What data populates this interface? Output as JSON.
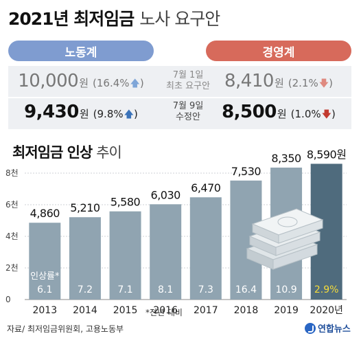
{
  "header": {
    "title_main": "2021년 최저임금",
    "title_sub": "노사 요구안"
  },
  "parties": {
    "labor": "노동계",
    "management": "경영계"
  },
  "comparison": [
    {
      "label_line1": "7월 1일",
      "label_line2": "최초 요구안",
      "labor": {
        "value": "10,000",
        "unit": "원",
        "pct_open": "(16.4%",
        "pct_close": ")",
        "direction": "up"
      },
      "management": {
        "value": "8,410",
        "unit": "원",
        "pct_open": "(2.1%",
        "pct_close": ")",
        "direction": "down"
      }
    },
    {
      "label_line1": "7월 9일",
      "label_line2": "수정안",
      "labor": {
        "value": "9,430",
        "unit": "원",
        "pct_open": "(9.8%",
        "pct_close": ")",
        "direction": "up"
      },
      "management": {
        "value": "8,500",
        "unit": "원",
        "pct_open": "(1.0%",
        "pct_close": ")",
        "direction": "down"
      }
    }
  ],
  "section": {
    "title_main": "최저임금 인상",
    "title_sub": "추이"
  },
  "chart_data": {
    "type": "bar",
    "categories": [
      "2013",
      "2014",
      "2015",
      "2016",
      "2017",
      "2018",
      "2019",
      "2020년"
    ],
    "values": [
      4860,
      5210,
      5580,
      6030,
      6470,
      7530,
      8350,
      8590
    ],
    "value_labels": [
      "4,860",
      "5,210",
      "5,580",
      "6,030",
      "6,470",
      "7,530",
      "8,350",
      "8,590원"
    ],
    "increase_rates": [
      "6.1",
      "7.2",
      "7.1",
      "8.1",
      "7.3",
      "16.4",
      "10.9",
      "2.9%"
    ],
    "increase_rate_label": "인상률*",
    "ylim": [
      0,
      8000
    ],
    "yticks": [
      0,
      2000,
      4000,
      6000,
      8000
    ],
    "ytick_labels": [
      "0",
      "2천",
      "4천",
      "6천",
      "8천"
    ],
    "grid": true,
    "colors": {
      "bar": "#90a4b1",
      "bar_highlight": "#4f6b7d",
      "rate_highlight": "#f5dc3a",
      "value_text": "#111111"
    }
  },
  "footer": {
    "source": "자료/ 최저임금위원회, 고용노동부",
    "note": "*전년 대비",
    "logo": "연합뉴스"
  }
}
